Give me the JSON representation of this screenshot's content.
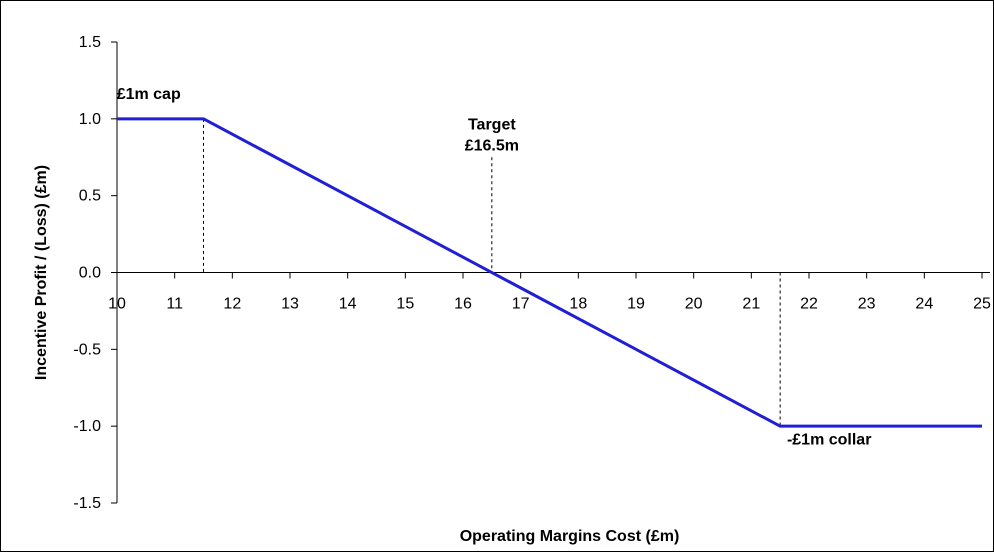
{
  "chart_data": {
    "type": "line",
    "title": "",
    "xlabel": "Operating Margins Cost (£m)",
    "ylabel": "Incentive Profit / (Loss) (£m)",
    "xlim": [
      10,
      25
    ],
    "ylim": [
      -1.5,
      1.5
    ],
    "x_ticks": [
      "10",
      "11",
      "12",
      "13",
      "14",
      "15",
      "16",
      "17",
      "18",
      "19",
      "20",
      "21",
      "22",
      "23",
      "24",
      "25"
    ],
    "y_ticks": [
      "1.5",
      "1.0",
      "0.5",
      "0.0",
      "-0.5",
      "-1.0",
      "-1.5"
    ],
    "grid": false,
    "series": [
      {
        "color": "#1f1fd6",
        "x": [
          10,
          11.5,
          21.5,
          25
        ],
        "y": [
          1.0,
          1.0,
          -1.0,
          -1.0
        ]
      }
    ],
    "reference_lines": [
      {
        "x": 11.5,
        "y_from": 0.0,
        "y_to": 1.0
      },
      {
        "x": 16.5,
        "y_from": 0.0,
        "y_to": 0.75
      },
      {
        "x": 21.5,
        "y_from": -1.0,
        "y_to": 0.0
      }
    ],
    "annotations": [
      {
        "lines": [
          "£1m cap"
        ],
        "x": 10.55,
        "y": 1.13,
        "anchor": "middle"
      },
      {
        "lines": [
          "Target",
          "£16.5m"
        ],
        "x": 16.5,
        "y": 0.93,
        "anchor": "middle"
      },
      {
        "lines": [
          "-£1m collar"
        ],
        "x": 22.35,
        "y": -1.12,
        "anchor": "middle"
      }
    ]
  }
}
